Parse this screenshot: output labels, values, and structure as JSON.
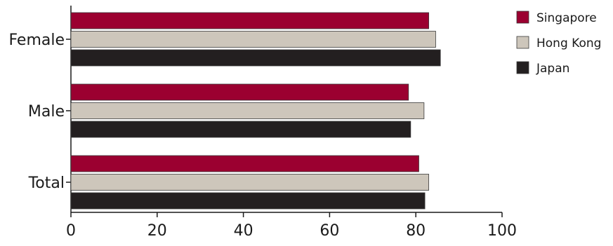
{
  "chart_data": {
    "type": "bar",
    "orientation": "horizontal",
    "categories": [
      "Female",
      "Male",
      "Total"
    ],
    "series": [
      {
        "name": "Singapore",
        "values": [
          83.0,
          78.3,
          80.7
        ],
        "color": "#9b0030"
      },
      {
        "name": "Hong Kong",
        "values": [
          84.6,
          81.9,
          83.0
        ],
        "color": "#cdc6bb"
      },
      {
        "name": "Japan",
        "values": [
          85.7,
          78.8,
          82.1
        ],
        "color": "#231f20"
      }
    ],
    "xlim": [
      0,
      100
    ],
    "x_ticks": [
      "0",
      "20",
      "40",
      "60",
      "80",
      "100"
    ],
    "title": "",
    "xlabel": "",
    "ylabel": "",
    "grid": false,
    "legend_position": "top-right"
  }
}
